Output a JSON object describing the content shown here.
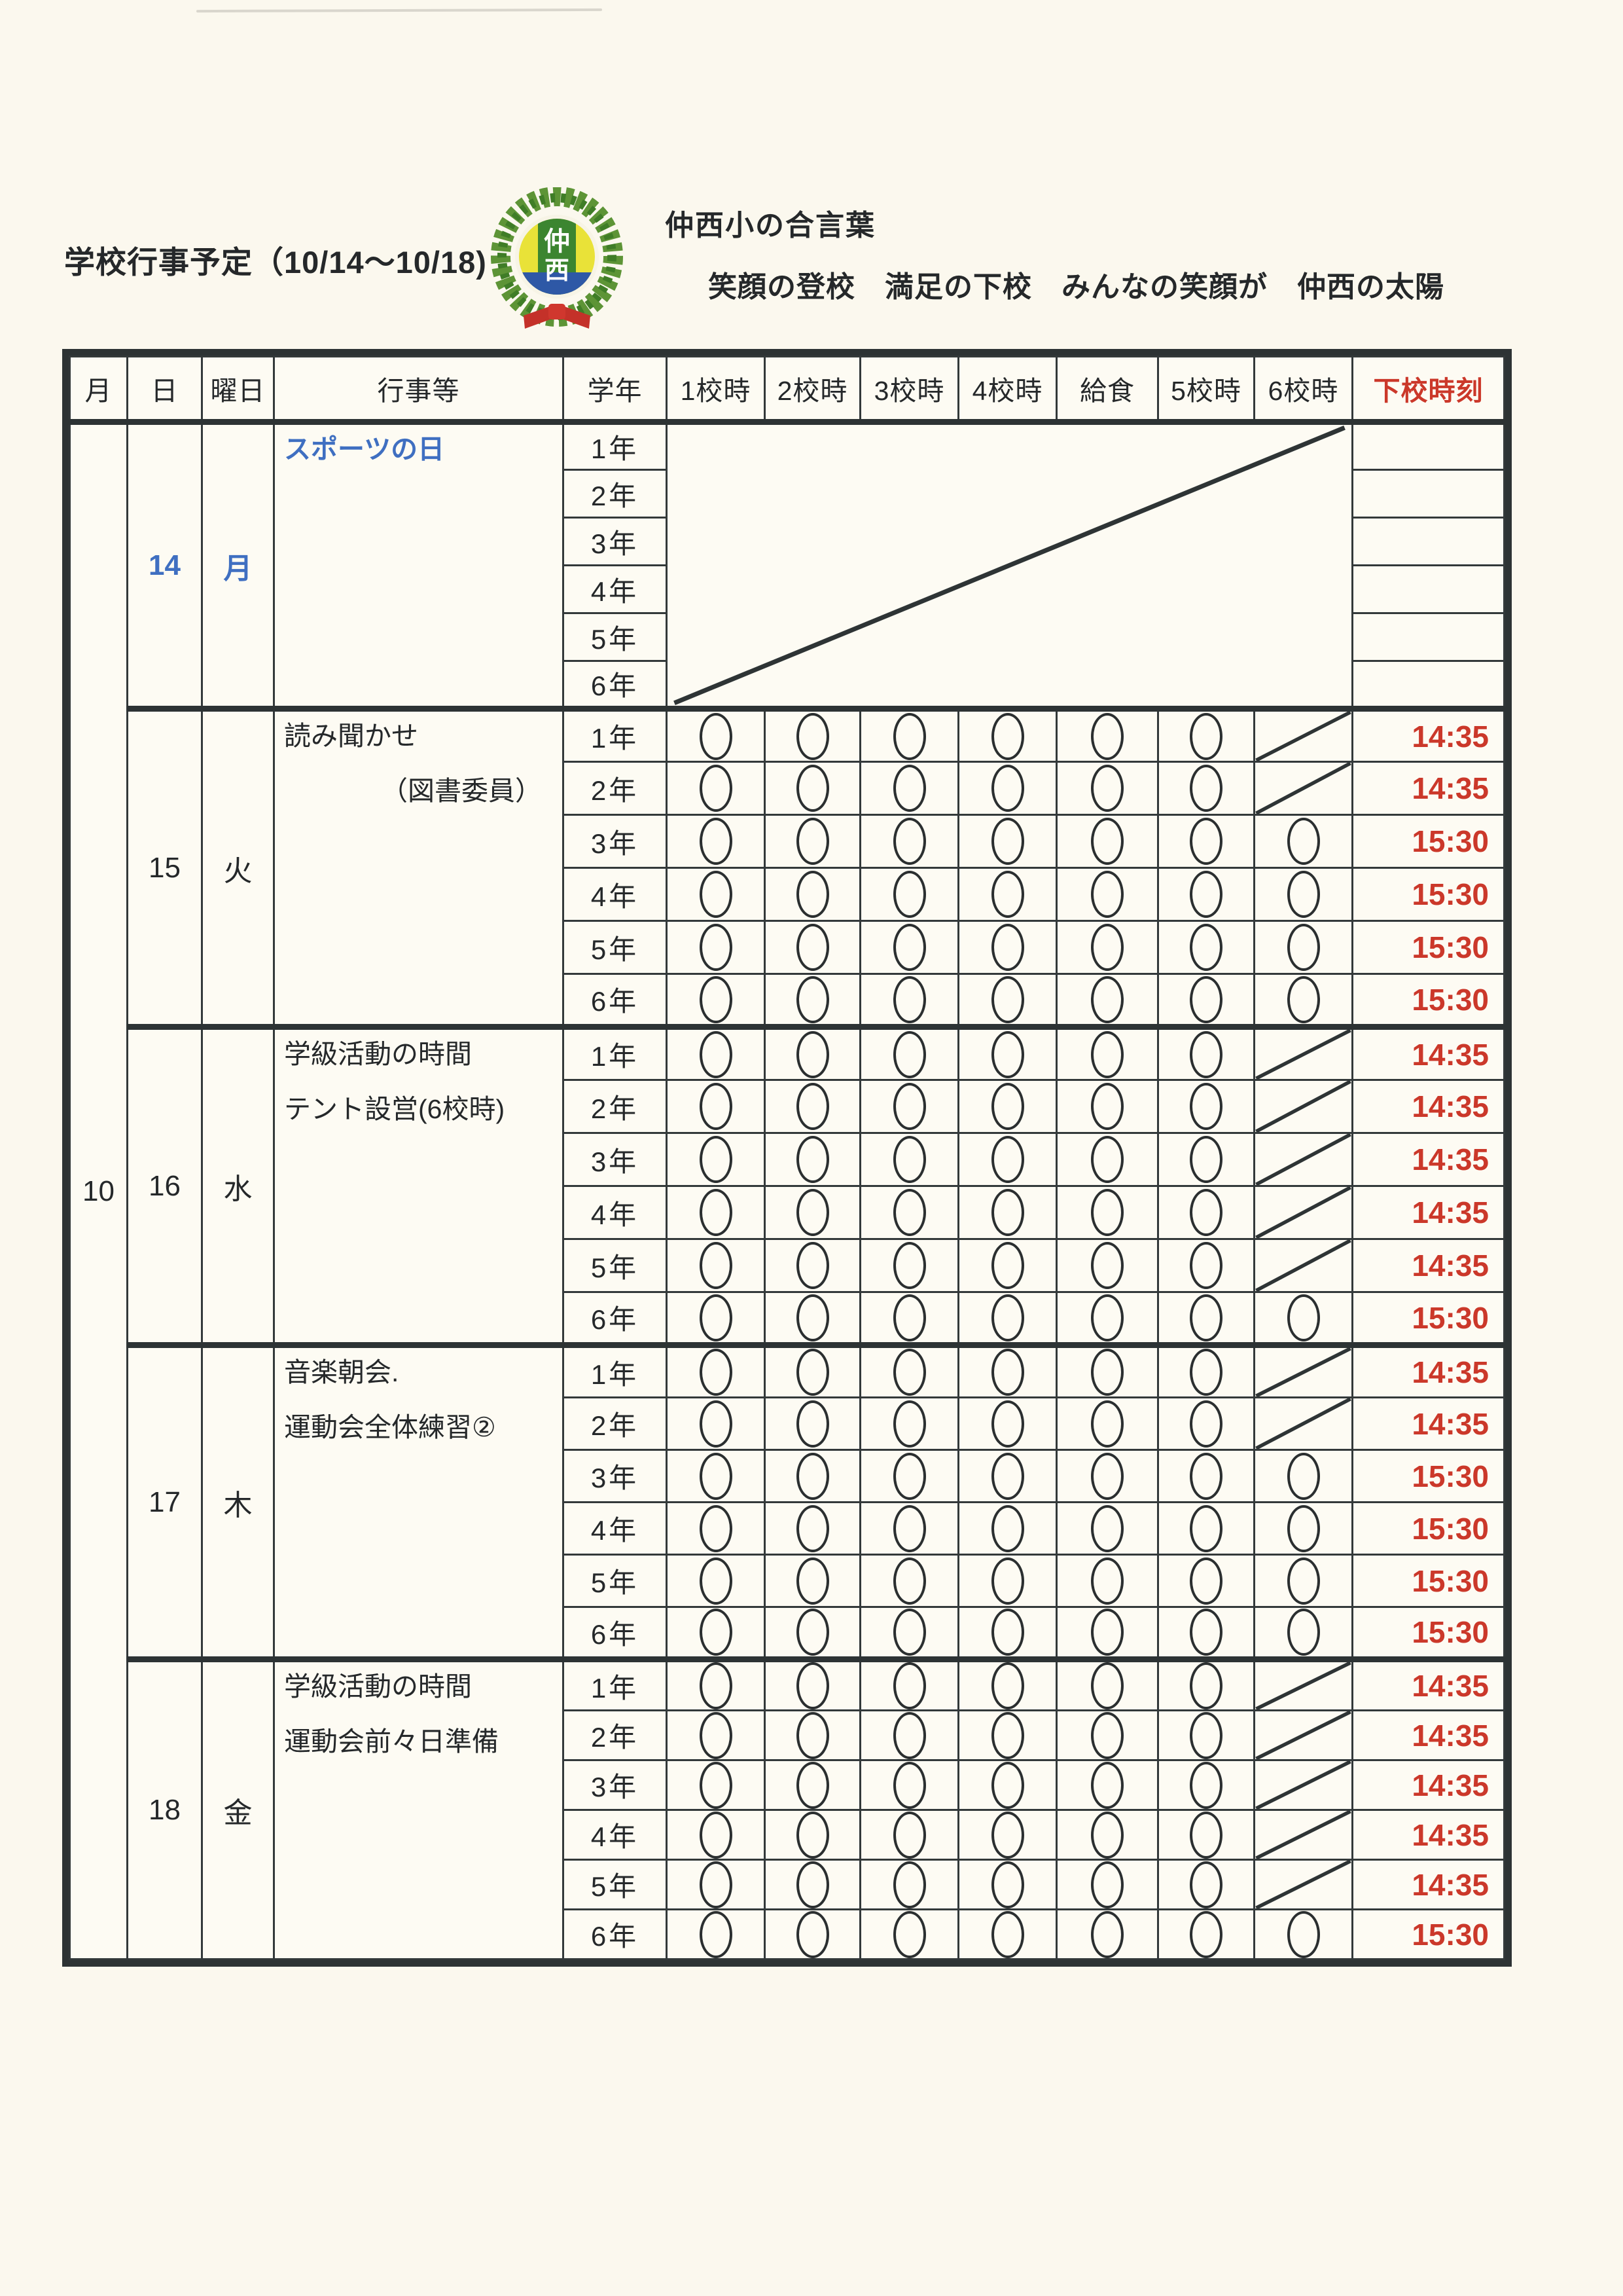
{
  "header": {
    "title": "学校行事予定（10/14～10/18)",
    "motto_label": "仲西小の合言葉",
    "motto": "笑顔の登校　満足の下校　みんなの笑顔が　仲西の太陽",
    "logo_char_top": "仲",
    "logo_char_bottom": "西"
  },
  "table": {
    "headers": [
      "月",
      "日",
      "曜日",
      "行事等",
      "学年",
      "1校時",
      "2校時",
      "3校時",
      "4校時",
      "給食",
      "5校時",
      "6校時",
      "下校時刻"
    ],
    "month": "10",
    "days": [
      {
        "date": "14",
        "weekday": "月",
        "highlight": true,
        "all_day_off": true,
        "events": [
          {
            "text": "スポーツの日",
            "indent": false
          }
        ],
        "grades": [
          {
            "grade": "1年",
            "periods": null,
            "dismissal": ""
          },
          {
            "grade": "2年",
            "periods": null,
            "dismissal": ""
          },
          {
            "grade": "3年",
            "periods": null,
            "dismissal": ""
          },
          {
            "grade": "4年",
            "periods": null,
            "dismissal": ""
          },
          {
            "grade": "5年",
            "periods": null,
            "dismissal": ""
          },
          {
            "grade": "6年",
            "periods": null,
            "dismissal": ""
          }
        ]
      },
      {
        "date": "15",
        "weekday": "火",
        "highlight": false,
        "all_day_off": false,
        "events": [
          {
            "text": "読み聞かせ",
            "indent": false
          },
          {
            "text": "（図書委員）",
            "indent": true
          }
        ],
        "grades": [
          {
            "grade": "1年",
            "periods": [
              "o",
              "o",
              "o",
              "o",
              "o",
              "o",
              "/"
            ],
            "dismissal": "14:35"
          },
          {
            "grade": "2年",
            "periods": [
              "o",
              "o",
              "o",
              "o",
              "o",
              "o",
              "/"
            ],
            "dismissal": "14:35"
          },
          {
            "grade": "3年",
            "periods": [
              "o",
              "o",
              "o",
              "o",
              "o",
              "o",
              "o"
            ],
            "dismissal": "15:30"
          },
          {
            "grade": "4年",
            "periods": [
              "o",
              "o",
              "o",
              "o",
              "o",
              "o",
              "o"
            ],
            "dismissal": "15:30"
          },
          {
            "grade": "5年",
            "periods": [
              "o",
              "o",
              "o",
              "o",
              "o",
              "o",
              "o"
            ],
            "dismissal": "15:30"
          },
          {
            "grade": "6年",
            "periods": [
              "o",
              "o",
              "o",
              "o",
              "o",
              "o",
              "o"
            ],
            "dismissal": "15:30"
          }
        ]
      },
      {
        "date": "16",
        "weekday": "水",
        "highlight": false,
        "all_day_off": false,
        "events": [
          {
            "text": "学級活動の時間",
            "indent": false
          },
          {
            "text": "テント設営(6校時)",
            "indent": false
          }
        ],
        "grades": [
          {
            "grade": "1年",
            "periods": [
              "o",
              "o",
              "o",
              "o",
              "o",
              "o",
              "/"
            ],
            "dismissal": "14:35"
          },
          {
            "grade": "2年",
            "periods": [
              "o",
              "o",
              "o",
              "o",
              "o",
              "o",
              "/"
            ],
            "dismissal": "14:35"
          },
          {
            "grade": "3年",
            "periods": [
              "o",
              "o",
              "o",
              "o",
              "o",
              "o",
              "/"
            ],
            "dismissal": "14:35"
          },
          {
            "grade": "4年",
            "periods": [
              "o",
              "o",
              "o",
              "o",
              "o",
              "o",
              "/"
            ],
            "dismissal": "14:35"
          },
          {
            "grade": "5年",
            "periods": [
              "o",
              "o",
              "o",
              "o",
              "o",
              "o",
              "/"
            ],
            "dismissal": "14:35"
          },
          {
            "grade": "6年",
            "periods": [
              "o",
              "o",
              "o",
              "o",
              "o",
              "o",
              "o"
            ],
            "dismissal": "15:30"
          }
        ]
      },
      {
        "date": "17",
        "weekday": "木",
        "highlight": false,
        "all_day_off": false,
        "events": [
          {
            "text": "音楽朝会.",
            "indent": false
          },
          {
            "text": "運動会全体練習②",
            "indent": false
          }
        ],
        "grades": [
          {
            "grade": "1年",
            "periods": [
              "o",
              "o",
              "o",
              "o",
              "o",
              "o",
              "/"
            ],
            "dismissal": "14:35"
          },
          {
            "grade": "2年",
            "periods": [
              "o",
              "o",
              "o",
              "o",
              "o",
              "o",
              "/"
            ],
            "dismissal": "14:35"
          },
          {
            "grade": "3年",
            "periods": [
              "o",
              "o",
              "o",
              "o",
              "o",
              "o",
              "o"
            ],
            "dismissal": "15:30"
          },
          {
            "grade": "4年",
            "periods": [
              "o",
              "o",
              "o",
              "o",
              "o",
              "o",
              "o"
            ],
            "dismissal": "15:30"
          },
          {
            "grade": "5年",
            "periods": [
              "o",
              "o",
              "o",
              "o",
              "o",
              "o",
              "o"
            ],
            "dismissal": "15:30"
          },
          {
            "grade": "6年",
            "periods": [
              "o",
              "o",
              "o",
              "o",
              "o",
              "o",
              "o"
            ],
            "dismissal": "15:30"
          }
        ]
      },
      {
        "date": "18",
        "weekday": "金",
        "highlight": false,
        "all_day_off": false,
        "events": [
          {
            "text": "学級活動の時間",
            "indent": false
          },
          {
            "text": "運動会前々日準備",
            "indent": false
          }
        ],
        "grades": [
          {
            "grade": "1年",
            "periods": [
              "o",
              "o",
              "o",
              "o",
              "o",
              "o",
              "/"
            ],
            "dismissal": "14:35"
          },
          {
            "grade": "2年",
            "periods": [
              "o",
              "o",
              "o",
              "o",
              "o",
              "o",
              "/"
            ],
            "dismissal": "14:35"
          },
          {
            "grade": "3年",
            "periods": [
              "o",
              "o",
              "o",
              "o",
              "o",
              "o",
              "/"
            ],
            "dismissal": "14:35"
          },
          {
            "grade": "4年",
            "periods": [
              "o",
              "o",
              "o",
              "o",
              "o",
              "o",
              "/"
            ],
            "dismissal": "14:35"
          },
          {
            "grade": "5年",
            "periods": [
              "o",
              "o",
              "o",
              "o",
              "o",
              "o",
              "/"
            ],
            "dismissal": "14:35"
          },
          {
            "grade": "6年",
            "periods": [
              "o",
              "o",
              "o",
              "o",
              "o",
              "o",
              "o"
            ],
            "dismissal": "15:30"
          }
        ]
      }
    ]
  },
  "colors": {
    "red": "#cb382a",
    "blue": "#3f6fc1",
    "ink": "#2d3334",
    "paper": "#fbf8ee"
  }
}
